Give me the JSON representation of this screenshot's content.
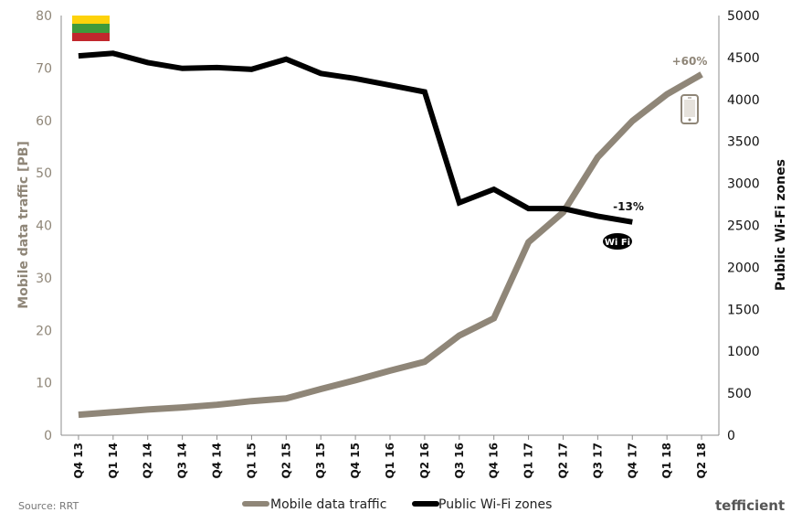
{
  "chart_data": {
    "type": "line",
    "categories": [
      "Q4 13",
      "Q1 14",
      "Q2 14",
      "Q3 14",
      "Q4 14",
      "Q1 15",
      "Q2 15",
      "Q3 15",
      "Q4 15",
      "Q1 16",
      "Q2 16",
      "Q3 16",
      "Q4 16",
      "Q1 17",
      "Q2 17",
      "Q3 17",
      "Q4 17",
      "Q1 18",
      "Q2 18"
    ],
    "series": [
      {
        "name": "Mobile data traffic",
        "axis": "left",
        "color": "#8f8678",
        "values": [
          3.9,
          4.4,
          4.9,
          5.3,
          5.8,
          6.5,
          7.0,
          8.8,
          10.5,
          12.3,
          14.0,
          19.0,
          22.3,
          36.8,
          42.5,
          53.0,
          59.9,
          65.0,
          68.8
        ]
      },
      {
        "name": "Public Wi-Fi zones",
        "axis": "right",
        "color": "#000000",
        "values": [
          4520,
          4550,
          4440,
          4370,
          4380,
          4360,
          4480,
          4310,
          4250,
          4170,
          4090,
          2770,
          2930,
          2700,
          2700,
          2610,
          2540,
          null,
          null
        ]
      }
    ],
    "ylabel": "Mobile data traffic [PB]",
    "ylim": [
      0,
      80
    ],
    "yticks": [
      "0",
      "10",
      "20",
      "30",
      "40",
      "50",
      "60",
      "70",
      "80"
    ],
    "y2label": "Public Wi-Fi zones",
    "y2lim": [
      0,
      5000
    ],
    "y2ticks": [
      "0",
      "500",
      "1000",
      "1500",
      "2000",
      "2500",
      "3000",
      "3500",
      "4000",
      "4500",
      "5000"
    ],
    "annotations": [
      {
        "text": "+60%",
        "series": "Mobile data traffic",
        "color": "#8f8678"
      },
      {
        "text": "-13%",
        "series": "Public Wi-Fi zones",
        "color": "#111111"
      }
    ],
    "legend": "bottom",
    "grid": false
  },
  "source": "Source: RRT",
  "brand": "tefficient",
  "icons": [
    "lithuania-flag-icon",
    "smartphone-icon",
    "wifi-icon"
  ],
  "flag_colors": [
    "#fdd20b",
    "#3f9a3b",
    "#c1272d"
  ]
}
